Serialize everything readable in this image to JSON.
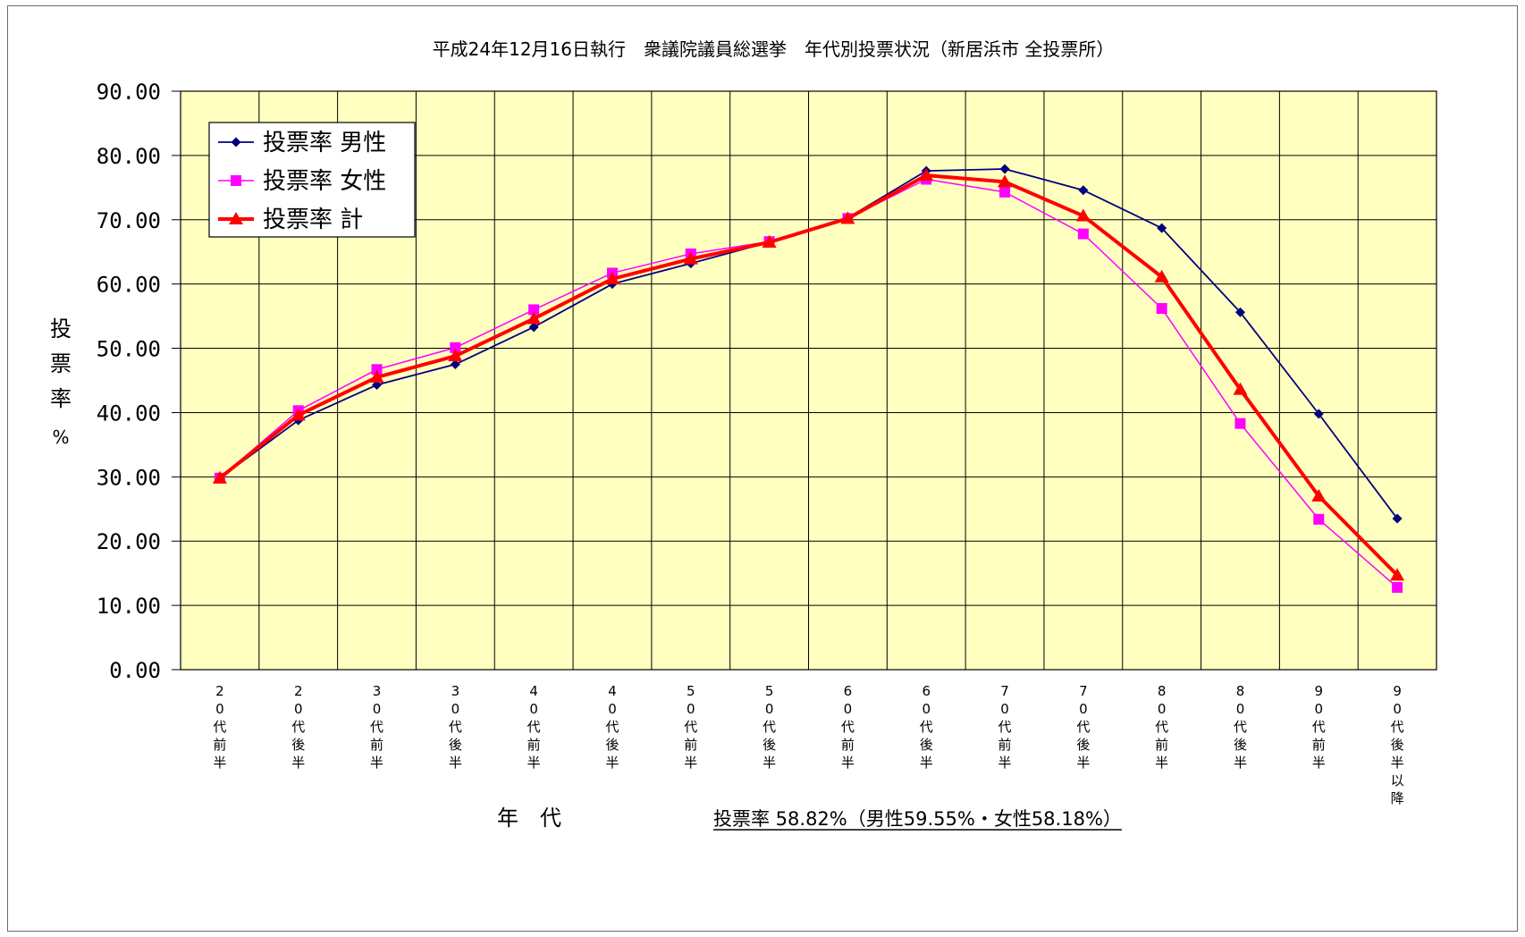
{
  "chart_data": {
    "type": "line",
    "title": "平成24年12月16日執行　衆議院議員総選挙　年代別投票状況（新居浜市 全投票所）",
    "ylabel": "投票率 %",
    "xlabel": "年　代",
    "summary": "投票率 58.82%（男性59.55%・女性58.18%）",
    "ylim": [
      0,
      90
    ],
    "yticks": [
      "0.00",
      "10.00",
      "20.00",
      "30.00",
      "40.00",
      "50.00",
      "60.00",
      "70.00",
      "80.00",
      "90.00"
    ],
    "grid": true,
    "legend_position": "top-left",
    "categories": [
      "20代前半",
      "20代後半",
      "30代前半",
      "30代後半",
      "40代前半",
      "40代後半",
      "50代前半",
      "50代後半",
      "60代前半",
      "60代後半",
      "70代前半",
      "70代後半",
      "80代前半",
      "80代後半",
      "90代前半",
      "90代後半以降"
    ],
    "series": [
      {
        "name": "投票率 男性",
        "color": "#000080",
        "marker": "diamond",
        "values": [
          29.8,
          38.8,
          44.3,
          47.5,
          53.3,
          60.0,
          63.2,
          66.5,
          70.3,
          77.6,
          77.9,
          74.6,
          68.7,
          55.6,
          39.8,
          23.5
        ]
      },
      {
        "name": "投票率 女性",
        "color": "#ff00ff",
        "marker": "square",
        "values": [
          29.8,
          40.3,
          46.7,
          50.1,
          56.0,
          61.7,
          64.7,
          66.6,
          70.2,
          76.3,
          74.3,
          67.8,
          56.2,
          38.3,
          23.4,
          12.8
        ]
      },
      {
        "name": "投票率 計",
        "color": "#ff0000",
        "marker": "triangle",
        "values": [
          29.8,
          39.6,
          45.5,
          48.8,
          54.6,
          60.8,
          63.9,
          66.5,
          70.2,
          76.9,
          75.9,
          70.6,
          61.1,
          43.6,
          27.0,
          14.7
        ]
      }
    ]
  }
}
